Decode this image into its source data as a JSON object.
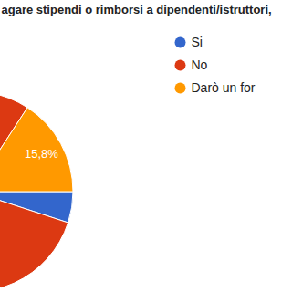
{
  "chart_data": {
    "type": "pie",
    "title": "agare stipendi o rimborsi a dipendenti/istruttori,",
    "categories": [
      "Si",
      "No",
      "Darò un for"
    ],
    "values": [
      5,
      79.2,
      15.8
    ],
    "value_labels": [
      null,
      null,
      "15,8%"
    ],
    "colors": [
      "#3366cc",
      "#dc3912",
      "#ff9900"
    ],
    "data_labels": true,
    "legend": "right"
  }
}
